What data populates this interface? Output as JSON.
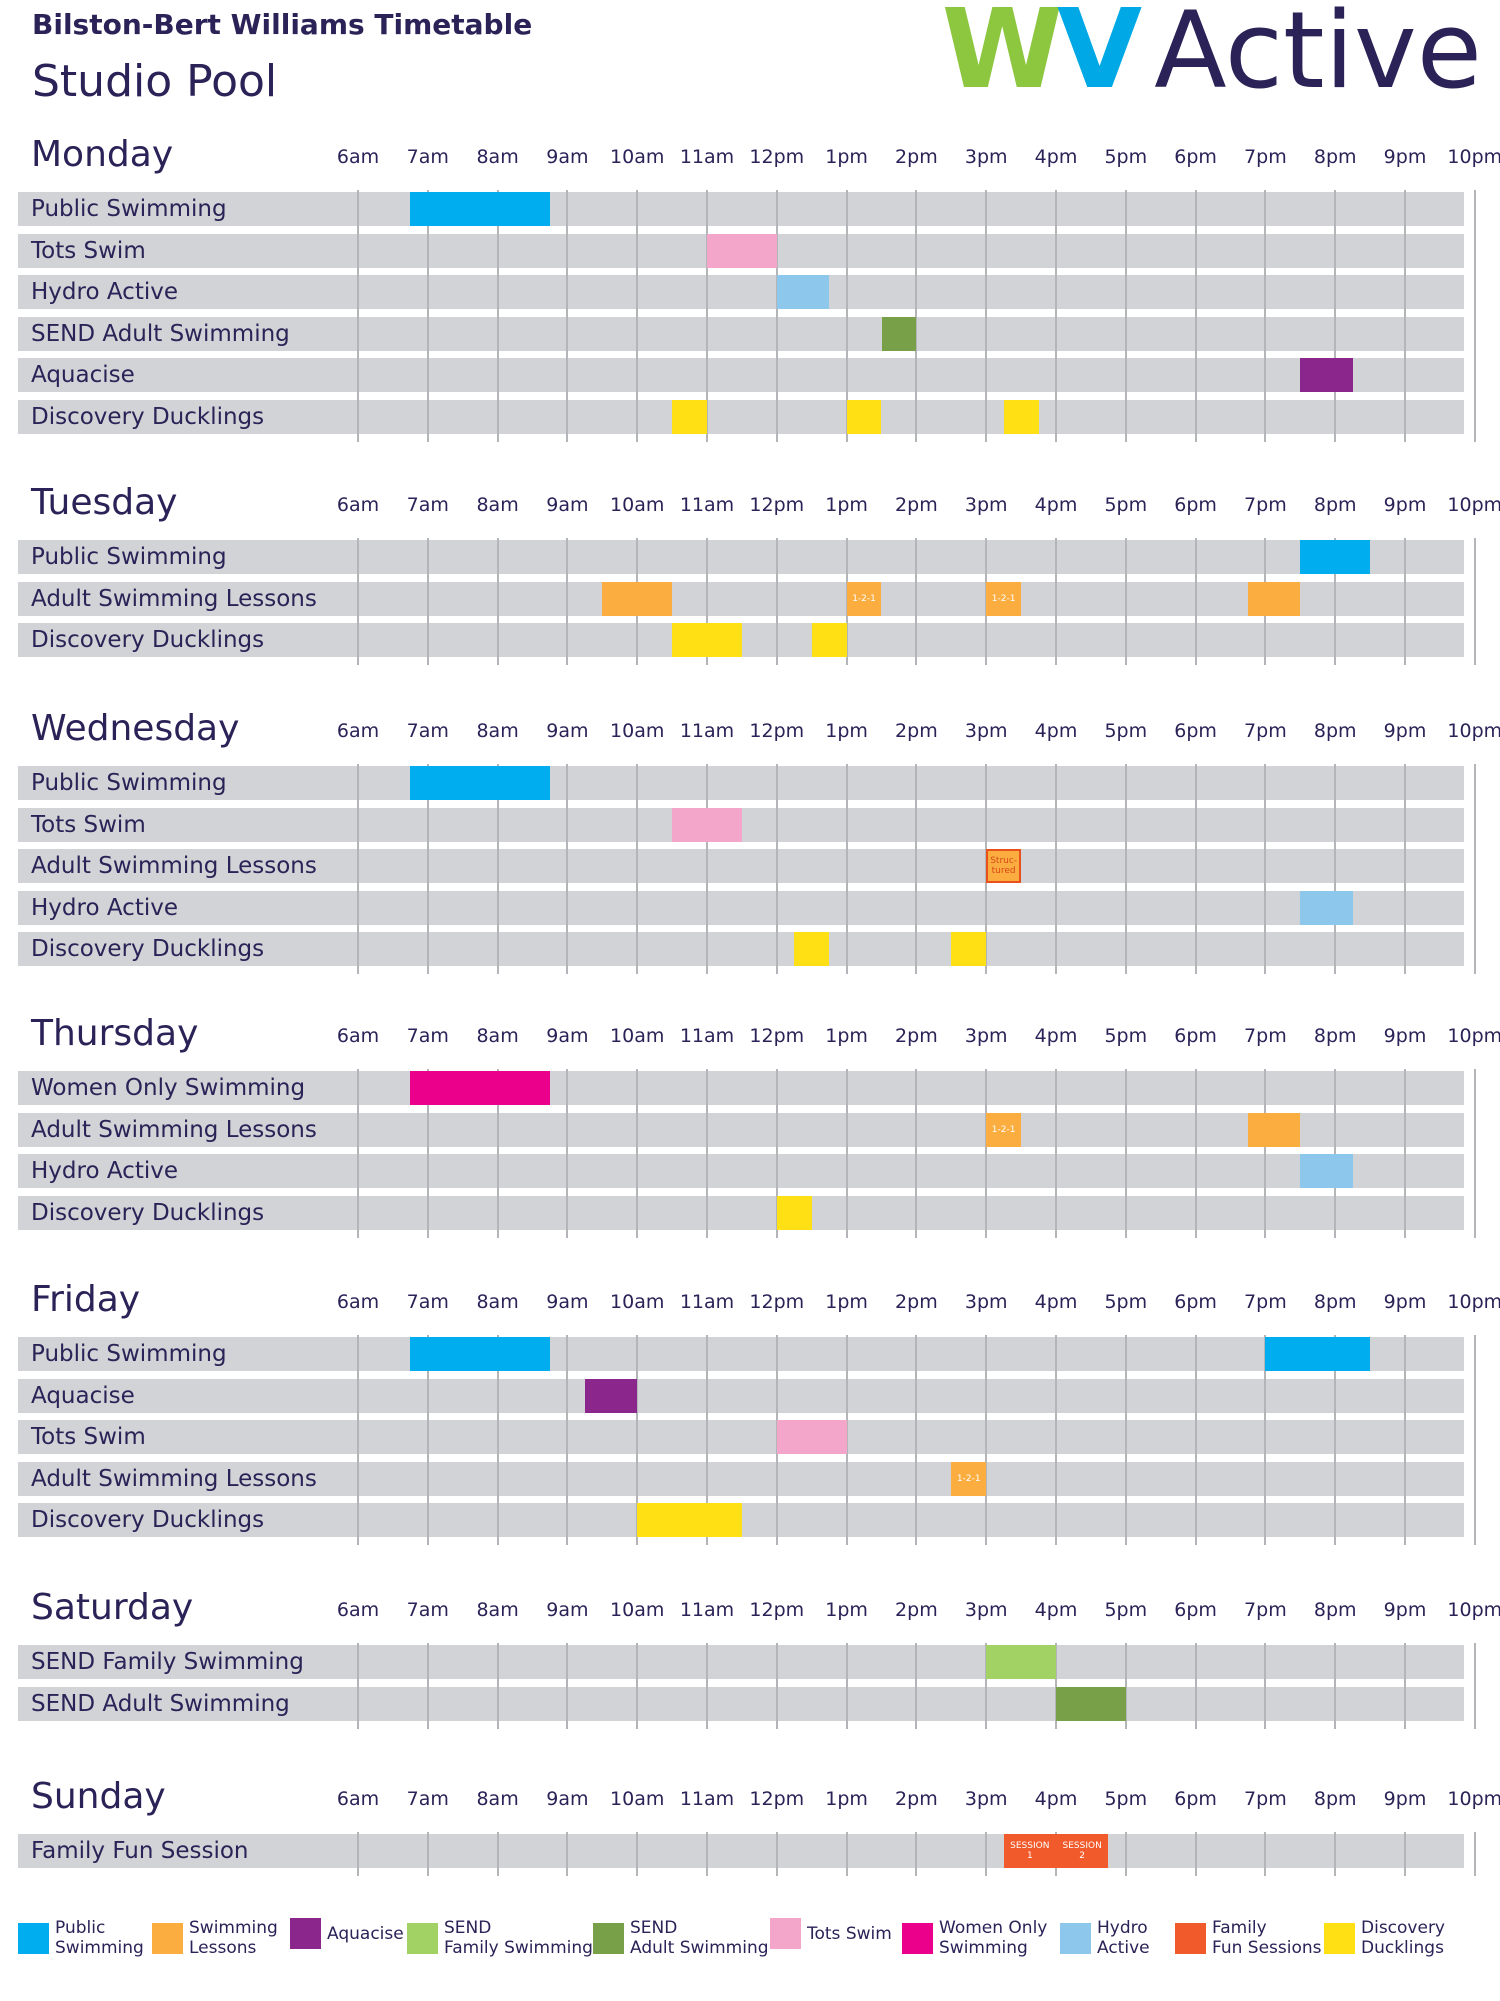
{
  "header": {
    "title": "Bilston-Bert Williams Timetable",
    "subtitle": "Studio Pool",
    "logo_text_wv": "WV",
    "logo_text_active": "Active"
  },
  "hours": [
    "6am",
    "7am",
    "8am",
    "9am",
    "10am",
    "11am",
    "12pm",
    "1pm",
    "2pm",
    "3pm",
    "4pm",
    "5pm",
    "6pm",
    "7pm",
    "8pm",
    "9pm",
    "10pm"
  ],
  "colors": {
    "public": "#00aeef",
    "lessons": "#fbad3f",
    "aquacise": "#8b278c",
    "send_family": "#a2d164",
    "send_adult": "#78a048",
    "tots": "#f4a6ca",
    "women": "#ea008b",
    "hydro": "#8dc8ec",
    "family_fun": "#f15a2a",
    "ducklings": "#ffe014"
  },
  "days": [
    {
      "name": "Monday",
      "rows": [
        {
          "label": "Public Swimming",
          "blocks": [
            {
              "start": 6.75,
              "end": 8.75,
              "type": "public"
            }
          ]
        },
        {
          "label": "Tots Swim",
          "blocks": [
            {
              "start": 11.0,
              "end": 12.0,
              "type": "tots"
            }
          ]
        },
        {
          "label": "Hydro Active",
          "blocks": [
            {
              "start": 12.0,
              "end": 12.75,
              "type": "hydro"
            }
          ]
        },
        {
          "label": "SEND Adult Swimming",
          "blocks": [
            {
              "start": 13.5,
              "end": 14.0,
              "type": "send_adult"
            }
          ]
        },
        {
          "label": "Aquacise",
          "blocks": [
            {
              "start": 19.5,
              "end": 20.25,
              "type": "aquacise"
            }
          ]
        },
        {
          "label": "Discovery Ducklings",
          "blocks": [
            {
              "start": 10.5,
              "end": 11.0,
              "type": "ducklings"
            },
            {
              "start": 13.0,
              "end": 13.5,
              "type": "ducklings"
            },
            {
              "start": 15.25,
              "end": 15.75,
              "type": "ducklings"
            }
          ]
        }
      ]
    },
    {
      "name": "Tuesday",
      "rows": [
        {
          "label": "Public Swimming",
          "blocks": [
            {
              "start": 19.5,
              "end": 20.5,
              "type": "public"
            }
          ]
        },
        {
          "label": "Adult Swimming Lessons",
          "blocks": [
            {
              "start": 9.5,
              "end": 10.5,
              "type": "lessons"
            },
            {
              "start": 13.0,
              "end": 13.5,
              "type": "lessons",
              "hatch": true,
              "text": "1-2-1"
            },
            {
              "start": 15.0,
              "end": 15.5,
              "type": "lessons",
              "hatch": true,
              "text": "1-2-1"
            },
            {
              "start": 18.75,
              "end": 19.5,
              "type": "lessons"
            }
          ]
        },
        {
          "label": "Discovery Ducklings",
          "blocks": [
            {
              "start": 10.5,
              "end": 11.5,
              "type": "ducklings"
            },
            {
              "start": 12.5,
              "end": 13.0,
              "type": "ducklings"
            }
          ]
        }
      ]
    },
    {
      "name": "Wednesday",
      "rows": [
        {
          "label": "Public Swimming",
          "blocks": [
            {
              "start": 6.75,
              "end": 8.75,
              "type": "public"
            }
          ]
        },
        {
          "label": "Tots Swim",
          "blocks": [
            {
              "start": 10.5,
              "end": 11.5,
              "type": "tots"
            }
          ]
        },
        {
          "label": "Adult Swimming Lessons",
          "blocks": [
            {
              "start": 15.0,
              "end": 15.5,
              "type": "lessons",
              "structured": true,
              "text": "Struc-\ntured"
            }
          ]
        },
        {
          "label": "Hydro Active",
          "blocks": [
            {
              "start": 19.5,
              "end": 20.25,
              "type": "hydro"
            }
          ]
        },
        {
          "label": "Discovery Ducklings",
          "blocks": [
            {
              "start": 12.25,
              "end": 12.75,
              "type": "ducklings"
            },
            {
              "start": 14.5,
              "end": 15.0,
              "type": "ducklings"
            }
          ]
        }
      ]
    },
    {
      "name": "Thursday",
      "rows": [
        {
          "label": "Women Only Swimming",
          "blocks": [
            {
              "start": 6.75,
              "end": 8.75,
              "type": "women"
            }
          ]
        },
        {
          "label": "Adult Swimming Lessons",
          "blocks": [
            {
              "start": 15.0,
              "end": 15.5,
              "type": "lessons",
              "hatch": true,
              "text": "1-2-1"
            },
            {
              "start": 18.75,
              "end": 19.5,
              "type": "lessons"
            }
          ]
        },
        {
          "label": "Hydro Active",
          "blocks": [
            {
              "start": 19.5,
              "end": 20.25,
              "type": "hydro"
            }
          ]
        },
        {
          "label": "Discovery Ducklings",
          "blocks": [
            {
              "start": 12.0,
              "end": 12.5,
              "type": "ducklings"
            }
          ]
        }
      ]
    },
    {
      "name": "Friday",
      "rows": [
        {
          "label": "Public Swimming",
          "blocks": [
            {
              "start": 6.75,
              "end": 8.75,
              "type": "public"
            },
            {
              "start": 19.0,
              "end": 20.5,
              "type": "public"
            }
          ]
        },
        {
          "label": "Aquacise",
          "blocks": [
            {
              "start": 9.25,
              "end": 10.0,
              "type": "aquacise"
            }
          ]
        },
        {
          "label": "Tots Swim",
          "blocks": [
            {
              "start": 12.0,
              "end": 13.0,
              "type": "tots"
            }
          ]
        },
        {
          "label": "Adult Swimming Lessons",
          "blocks": [
            {
              "start": 14.5,
              "end": 15.0,
              "type": "lessons",
              "hatch": true,
              "text": "1-2-1"
            }
          ]
        },
        {
          "label": "Discovery Ducklings",
          "blocks": [
            {
              "start": 10.0,
              "end": 11.5,
              "type": "ducklings"
            }
          ]
        }
      ]
    },
    {
      "name": "Saturday",
      "rows": [
        {
          "label": "SEND Family Swimming",
          "blocks": [
            {
              "start": 15.0,
              "end": 16.0,
              "type": "send_family"
            }
          ]
        },
        {
          "label": "SEND Adult Swimming",
          "blocks": [
            {
              "start": 16.0,
              "end": 17.0,
              "type": "send_adult"
            }
          ]
        }
      ]
    },
    {
      "name": "Sunday",
      "rows": [
        {
          "label": "Family Fun Session",
          "blocks": [
            {
              "start": 15.25,
              "end": 16.0,
              "type": "family_fun",
              "text": "SESSION\n1"
            },
            {
              "start": 16.0,
              "end": 16.75,
              "type": "family_fun",
              "text": "SESSION\n2"
            }
          ]
        }
      ]
    }
  ],
  "legend": [
    {
      "type": "public",
      "label": "Public\nSwimming"
    },
    {
      "type": "lessons",
      "label": "Swimming\nLessons"
    },
    {
      "type": "aquacise",
      "label": "Aquacise"
    },
    {
      "type": "send_family",
      "label": "SEND\nFamily Swimming"
    },
    {
      "type": "send_adult",
      "label": "SEND\nAdult Swimming"
    },
    {
      "type": "tots",
      "label": "Tots Swim"
    },
    {
      "type": "women",
      "label": "Women Only\nSwimming"
    },
    {
      "type": "hydro",
      "label": "Hydro\nActive"
    },
    {
      "type": "family_fun",
      "label": "Family\nFun Sessions"
    },
    {
      "type": "ducklings",
      "label": "Discovery\nDucklings"
    }
  ]
}
